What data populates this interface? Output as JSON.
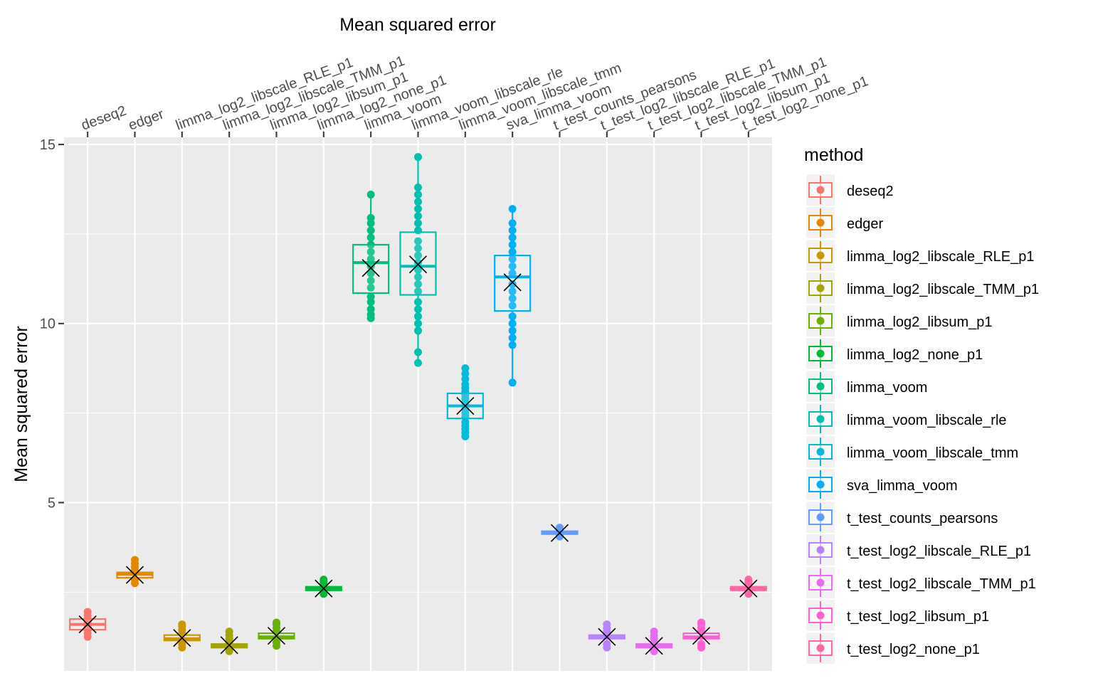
{
  "chart_data": {
    "type": "box",
    "title": "Mean squared error",
    "ylabel": "Mean squared error",
    "xlabel": "",
    "ylim": [
      0,
      15.4
    ],
    "yticks": [
      5,
      10,
      15
    ],
    "grid": true,
    "legend_title": "method",
    "legend_position": "right",
    "mean_marker": "x",
    "categories": [
      "deseq2",
      "edger",
      "limma_log2_libscale_RLE_p1",
      "limma_log2_libscale_TMM_p1",
      "limma_log2_libsum_p1",
      "limma_log2_none_p1",
      "limma_voom",
      "limma_voom_libscale_rle",
      "limma_voom_libscale_tmm",
      "sva_limma_voom",
      "t_test_counts_pearsons",
      "t_test_log2_libscale_RLE_p1",
      "t_test_log2_libscale_TMM_p1",
      "t_test_log2_libsum_p1",
      "t_test_log2_none_p1"
    ],
    "colors": [
      "#F8766D",
      "#E58700",
      "#C99800",
      "#A3A500",
      "#6BB100",
      "#00BA38",
      "#00BF7D",
      "#00C0AF",
      "#00BCD8",
      "#00B0F6",
      "#619CFF",
      "#B983FF",
      "#E76BF3",
      "#FD61D1",
      "#FF67A4"
    ],
    "series": [
      {
        "q1": 1.45,
        "median": 1.6,
        "q3": 1.75,
        "min": 1.25,
        "max": 1.95,
        "mean": 1.6,
        "points": [
          1.25,
          1.35,
          1.45,
          1.55,
          1.65,
          1.75,
          1.85,
          1.95
        ]
      },
      {
        "q1": 2.9,
        "median": 3.0,
        "q3": 3.05,
        "min": 2.75,
        "max": 3.4,
        "mean": 2.98,
        "points": [
          2.75,
          2.85,
          3.1,
          3.2,
          3.3,
          3.4
        ]
      },
      {
        "q1": 1.15,
        "median": 1.2,
        "q3": 1.3,
        "min": 0.95,
        "max": 1.6,
        "mean": 1.22,
        "points": [
          0.95,
          1.05,
          1.35,
          1.45,
          1.55,
          1.6
        ]
      },
      {
        "q1": 0.95,
        "median": 1.0,
        "q3": 1.05,
        "min": 0.85,
        "max": 1.4,
        "mean": 1.02,
        "points": [
          0.85,
          0.9,
          1.1,
          1.2,
          1.3,
          1.4
        ]
      },
      {
        "q1": 1.2,
        "median": 1.25,
        "q3": 1.35,
        "min": 1.0,
        "max": 1.65,
        "mean": 1.28,
        "points": [
          1.0,
          1.1,
          1.4,
          1.5,
          1.6,
          1.65
        ]
      },
      {
        "q1": 2.55,
        "median": 2.6,
        "q3": 2.65,
        "min": 2.45,
        "max": 2.85,
        "mean": 2.6,
        "points": [
          2.45,
          2.5,
          2.7,
          2.75,
          2.8,
          2.85
        ]
      },
      {
        "q1": 10.85,
        "median": 11.7,
        "q3": 12.2,
        "min": 10.15,
        "max": 13.6,
        "mean": 11.55,
        "points": [
          10.15,
          10.25,
          10.4,
          10.6,
          10.75,
          11.0,
          11.2,
          11.4,
          11.6,
          11.8,
          12.0,
          12.2,
          12.4,
          12.6,
          12.8,
          12.95,
          13.6
        ]
      },
      {
        "q1": 10.8,
        "median": 11.6,
        "q3": 12.55,
        "min": 8.9,
        "max": 14.65,
        "mean": 11.65,
        "points": [
          8.9,
          9.2,
          9.8,
          10.0,
          10.2,
          10.4,
          10.6,
          10.9,
          11.1,
          11.3,
          11.5,
          11.7,
          11.9,
          12.1,
          12.3,
          12.6,
          12.8,
          13.0,
          13.2,
          13.4,
          13.6,
          13.8,
          14.65
        ]
      },
      {
        "q1": 7.35,
        "median": 7.7,
        "q3": 8.05,
        "min": 6.85,
        "max": 8.75,
        "mean": 7.7,
        "points": [
          6.85,
          6.95,
          7.05,
          7.15,
          7.25,
          7.4,
          7.5,
          7.6,
          7.8,
          7.9,
          8.0,
          8.1,
          8.2,
          8.3,
          8.45,
          8.6,
          8.75
        ]
      },
      {
        "q1": 10.35,
        "median": 11.3,
        "q3": 11.9,
        "min": 8.35,
        "max": 13.2,
        "mean": 11.15,
        "points": [
          8.35,
          9.4,
          9.6,
          9.8,
          10.0,
          10.2,
          10.5,
          10.7,
          10.9,
          11.1,
          11.4,
          11.6,
          11.8,
          12.0,
          12.2,
          12.4,
          12.6,
          12.8,
          13.2
        ]
      },
      {
        "q1": 4.12,
        "median": 4.15,
        "q3": 4.2,
        "min": 4.05,
        "max": 4.3,
        "mean": 4.15,
        "points": [
          4.05,
          4.1,
          4.2,
          4.25,
          4.3
        ]
      },
      {
        "q1": 1.2,
        "median": 1.25,
        "q3": 1.3,
        "min": 0.95,
        "max": 1.6,
        "mean": 1.25,
        "points": [
          0.95,
          1.05,
          1.4,
          1.5,
          1.6
        ]
      },
      {
        "q1": 0.95,
        "median": 1.0,
        "q3": 1.05,
        "min": 0.85,
        "max": 1.4,
        "mean": 1.0,
        "points": [
          0.85,
          0.9,
          1.1,
          1.2,
          1.3,
          1.4
        ]
      },
      {
        "q1": 1.2,
        "median": 1.25,
        "q3": 1.35,
        "min": 0.95,
        "max": 1.65,
        "mean": 1.28,
        "points": [
          0.95,
          1.05,
          1.4,
          1.5,
          1.6,
          1.65
        ]
      },
      {
        "q1": 2.55,
        "median": 2.6,
        "q3": 2.65,
        "min": 2.45,
        "max": 2.85,
        "mean": 2.6,
        "points": [
          2.45,
          2.5,
          2.7,
          2.75,
          2.8,
          2.85
        ]
      }
    ]
  }
}
